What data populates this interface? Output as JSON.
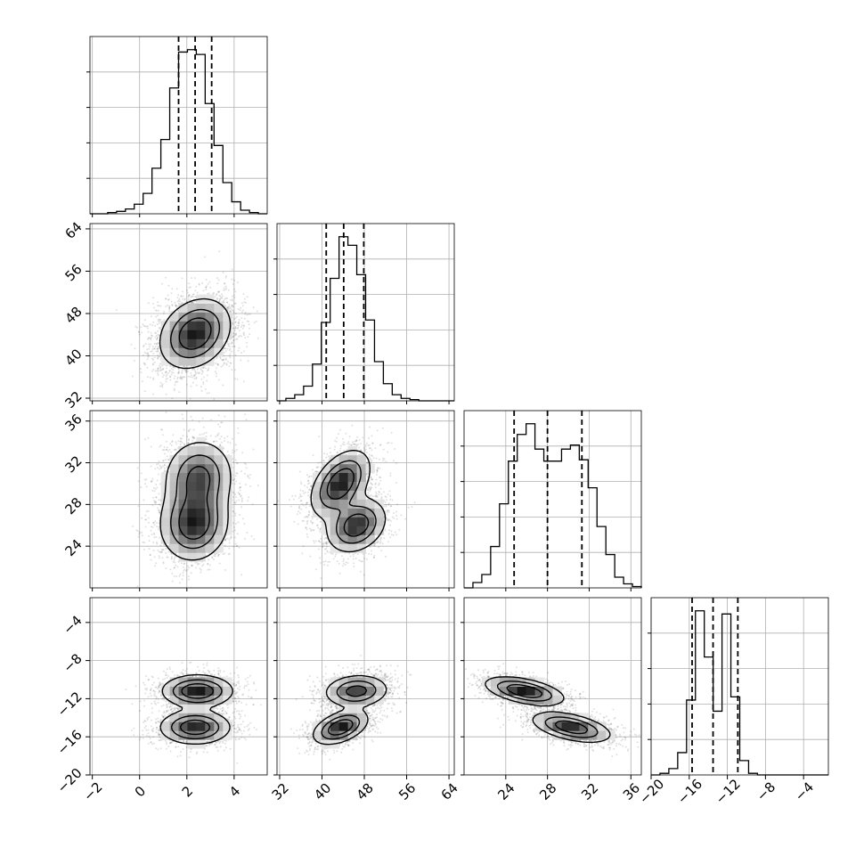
{
  "chart_data": {
    "type": "corner",
    "grid": true,
    "parameters": [
      {
        "index": 0,
        "axis_ticks": [
          -2,
          0,
          2,
          4
        ],
        "tick_labels": [
          "−2",
          "0",
          "2",
          "4"
        ],
        "range": [
          -2.1,
          5.4
        ],
        "mean": 2.4,
        "sd": 0.75,
        "quantiles": [
          1.65,
          2.35,
          3.05
        ]
      },
      {
        "index": 1,
        "axis_ticks": [
          32,
          40,
          48,
          56,
          64
        ],
        "tick_labels": [
          "32",
          "40",
          "48",
          "56",
          "64"
        ],
        "range": [
          31.5,
          65.0
        ],
        "mean": 44.5,
        "sd": 3.3,
        "quantiles": [
          40.8,
          44.1,
          47.9
        ]
      },
      {
        "index": 2,
        "axis_ticks": [
          24,
          28,
          32,
          36
        ],
        "tick_labels": [
          "24",
          "28",
          "32",
          "36"
        ],
        "range": [
          20.0,
          37.0
        ],
        "quantiles": [
          24.8,
          28.0,
          31.3
        ]
      },
      {
        "index": 3,
        "axis_ticks": [
          -20,
          -16,
          -12,
          -8,
          -4
        ],
        "tick_labels": [
          "−20",
          "−16",
          "−12",
          "−8",
          "−4"
        ],
        "range": [
          -20.0,
          -1.4
        ],
        "quantiles": [
          -15.7,
          -13.5,
          -10.9
        ]
      }
    ],
    "histograms": [
      {
        "param": 0,
        "bin_edges": [
          -2.1,
          -1.725,
          -1.35,
          -0.975,
          -0.6,
          -0.225,
          0.15,
          0.525,
          0.9,
          1.275,
          1.65,
          2.025,
          2.4,
          2.775,
          3.15,
          3.525,
          3.9,
          4.275,
          4.65,
          5.025,
          5.4
        ],
        "counts": [
          0,
          0,
          1,
          2,
          4,
          8,
          17,
          38,
          62,
          105,
          135,
          137,
          133,
          92,
          57,
          26,
          10,
          3,
          1,
          0
        ]
      },
      {
        "param": 1,
        "bin_edges": [
          31.5,
          33.175,
          34.85,
          36.525,
          38.2,
          39.875,
          41.55,
          43.225,
          44.9,
          46.575,
          48.25,
          49.925,
          51.6,
          53.275,
          54.95,
          56.625,
          58.3,
          59.975,
          61.65,
          63.325,
          65.0
        ],
        "counts": [
          0,
          2,
          5,
          12,
          30,
          64,
          100,
          134,
          127,
          103,
          66,
          32,
          14,
          5,
          2,
          1,
          0,
          0,
          0,
          0
        ]
      },
      {
        "param": 2,
        "bin_edges": [
          20.0,
          20.85,
          21.7,
          22.55,
          23.4,
          24.25,
          25.1,
          25.95,
          26.8,
          27.65,
          28.5,
          29.35,
          30.2,
          31.05,
          31.9,
          32.75,
          33.6,
          34.45,
          35.3,
          36.15,
          37.0
        ],
        "counts": [
          0,
          4,
          10,
          31,
          63,
          95,
          115,
          123,
          104,
          95,
          95,
          104,
          107,
          96,
          75,
          46,
          25,
          8,
          3,
          1
        ]
      },
      {
        "param": 3,
        "bin_edges": [
          -20.0,
          -19.07,
          -18.14,
          -17.21,
          -16.28,
          -15.35,
          -14.42,
          -13.49,
          -12.56,
          -11.63,
          -10.7,
          -9.77,
          -8.84,
          -7.91,
          -6.98,
          -6.05,
          -5.12,
          -4.19,
          -3.26,
          -2.33,
          -1.4
        ],
        "counts": [
          0,
          1,
          4,
          14,
          47,
          103,
          74,
          40,
          101,
          49,
          9,
          1,
          0,
          0,
          0,
          0,
          0,
          0,
          0,
          0
        ]
      }
    ],
    "joint": [
      {
        "x_param": 0,
        "y_param": 1,
        "components": [
          {
            "mx": 2.35,
            "my": 44.2,
            "sx": 0.75,
            "sy": 3.3,
            "rho": 0.25,
            "w": 1.0
          }
        ]
      },
      {
        "x_param": 0,
        "y_param": 2,
        "components": [
          {
            "mx": 2.3,
            "my": 26.2,
            "sx": 0.72,
            "sy": 1.8,
            "rho": 0.05,
            "w": 0.55
          },
          {
            "mx": 2.5,
            "my": 30.6,
            "sx": 0.72,
            "sy": 1.8,
            "rho": 0.05,
            "w": 0.45
          }
        ]
      },
      {
        "x_param": 1,
        "y_param": 2,
        "components": [
          {
            "mx": 43.5,
            "my": 30.0,
            "sx": 2.8,
            "sy": 1.6,
            "rho": 0.45,
            "w": 0.55
          },
          {
            "mx": 46.5,
            "my": 26.0,
            "sx": 2.8,
            "sy": 1.3,
            "rho": 0.25,
            "w": 0.45
          }
        ]
      },
      {
        "x_param": 0,
        "y_param": 3,
        "components": [
          {
            "mx": 2.45,
            "my": -11.2,
            "sx": 0.75,
            "sy": 0.85,
            "rho": 0.0,
            "w": 0.5
          },
          {
            "mx": 2.35,
            "my": -15.0,
            "sx": 0.75,
            "sy": 0.9,
            "rho": 0.0,
            "w": 0.5
          }
        ]
      },
      {
        "x_param": 1,
        "y_param": 3,
        "components": [
          {
            "mx": 46.5,
            "my": -11.2,
            "sx": 3.0,
            "sy": 0.85,
            "rho": 0.1,
            "w": 0.5
          },
          {
            "mx": 43.5,
            "my": -15.0,
            "sx": 2.6,
            "sy": 0.9,
            "rho": 0.45,
            "w": 0.5
          }
        ]
      },
      {
        "x_param": 2,
        "y_param": 3,
        "components": [
          {
            "mx": 25.8,
            "my": -11.2,
            "sx": 1.9,
            "sy": 0.75,
            "rho": -0.5,
            "w": 0.5
          },
          {
            "mx": 30.3,
            "my": -15.0,
            "sx": 1.9,
            "sy": 0.8,
            "rho": -0.5,
            "w": 0.5
          }
        ]
      }
    ]
  }
}
